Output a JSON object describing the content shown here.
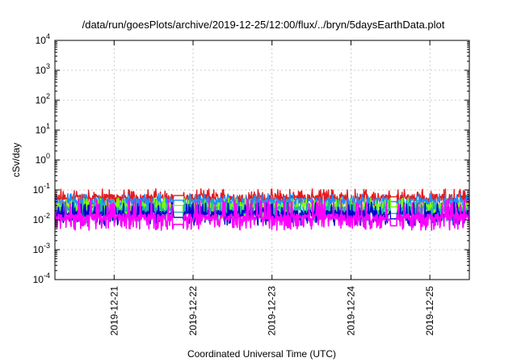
{
  "chart_data": {
    "type": "line",
    "title": "/data/run/goesPlots/archive/2019-12-25/12:00/flux/../bryn/5daysEarthData.plot",
    "xlabel": "Coordinated Universal Time (UTC)",
    "ylabel": "cSv/day",
    "yscale": "log",
    "ylim": [
      0.0001,
      10000
    ],
    "xlim": [
      "2019-12-20T06:00",
      "2019-12-25T12:00"
    ],
    "grid": true,
    "x_ticks": [
      "2019-12-21",
      "2019-12-22",
      "2019-12-23",
      "2019-12-24",
      "2019-12-25"
    ],
    "y_ticks": [
      {
        "value": 0.0001,
        "base": "10",
        "exp": "-4"
      },
      {
        "value": 0.001,
        "base": "10",
        "exp": "-3"
      },
      {
        "value": 0.01,
        "base": "10",
        "exp": "-2"
      },
      {
        "value": 0.1,
        "base": "10",
        "exp": "-1"
      },
      {
        "value": 1,
        "base": "10",
        "exp": "0"
      },
      {
        "value": 10,
        "base": "10",
        "exp": "1"
      },
      {
        "value": 100,
        "base": "10",
        "exp": "2"
      },
      {
        "value": 1000,
        "base": "10",
        "exp": "3"
      },
      {
        "value": 10000,
        "base": "10",
        "exp": "4"
      }
    ],
    "gap": [
      "2019-12-21T18:00",
      "2019-12-21T21:00"
    ],
    "gap2": [
      "2019-12-24T12:00",
      "2019-12-24T14:00"
    ],
    "series": [
      {
        "color": "#e41a1c",
        "typical": 0.055,
        "low": 0.03,
        "high": 0.1,
        "gap_level": 0.065
      },
      {
        "color": "#1e90ff",
        "typical": 0.04,
        "low": 0.022,
        "high": 0.07,
        "gap_level": 0.045
      },
      {
        "color": "#7fff00",
        "typical": 0.028,
        "low": 0.012,
        "high": 0.05,
        "gap_level": 0.03
      },
      {
        "color": "#20b2aa",
        "typical": 0.022,
        "low": 0.01,
        "high": 0.045,
        "gap_level": 0.018
      },
      {
        "color": "#0000cd",
        "typical": 0.016,
        "low": 0.008,
        "high": 0.035,
        "gap_level": 0.012
      },
      {
        "color": "#ff00ff",
        "typical": 0.012,
        "low": 0.0055,
        "high": 0.045,
        "gap_level": 0.007
      }
    ]
  }
}
